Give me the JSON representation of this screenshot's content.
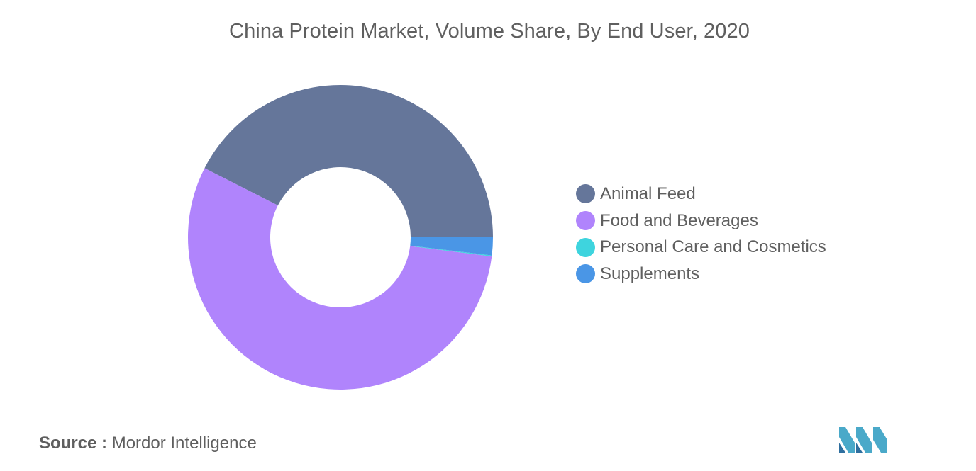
{
  "chart_data": {
    "type": "pie",
    "donut": true,
    "title": "China Protein Market, Volume Share, By End User, 2020",
    "categories": [
      "Animal Feed",
      "Food and Beverages",
      "Personal Care and Cosmetics",
      "Supplements"
    ],
    "values": [
      42.5,
      55.5,
      0.1,
      1.9
    ],
    "unit": "%",
    "colors": [
      "#65769a",
      "#b084fc",
      "#3ed4de",
      "#4a96e6"
    ],
    "legend_position": "right"
  },
  "source": {
    "prefix": "Source :",
    "name": "Mordor Intelligence"
  },
  "logo": {
    "icon": "mordor-intelligence-logo",
    "colors": [
      "#4aa9c9",
      "#2f6f9f"
    ]
  }
}
